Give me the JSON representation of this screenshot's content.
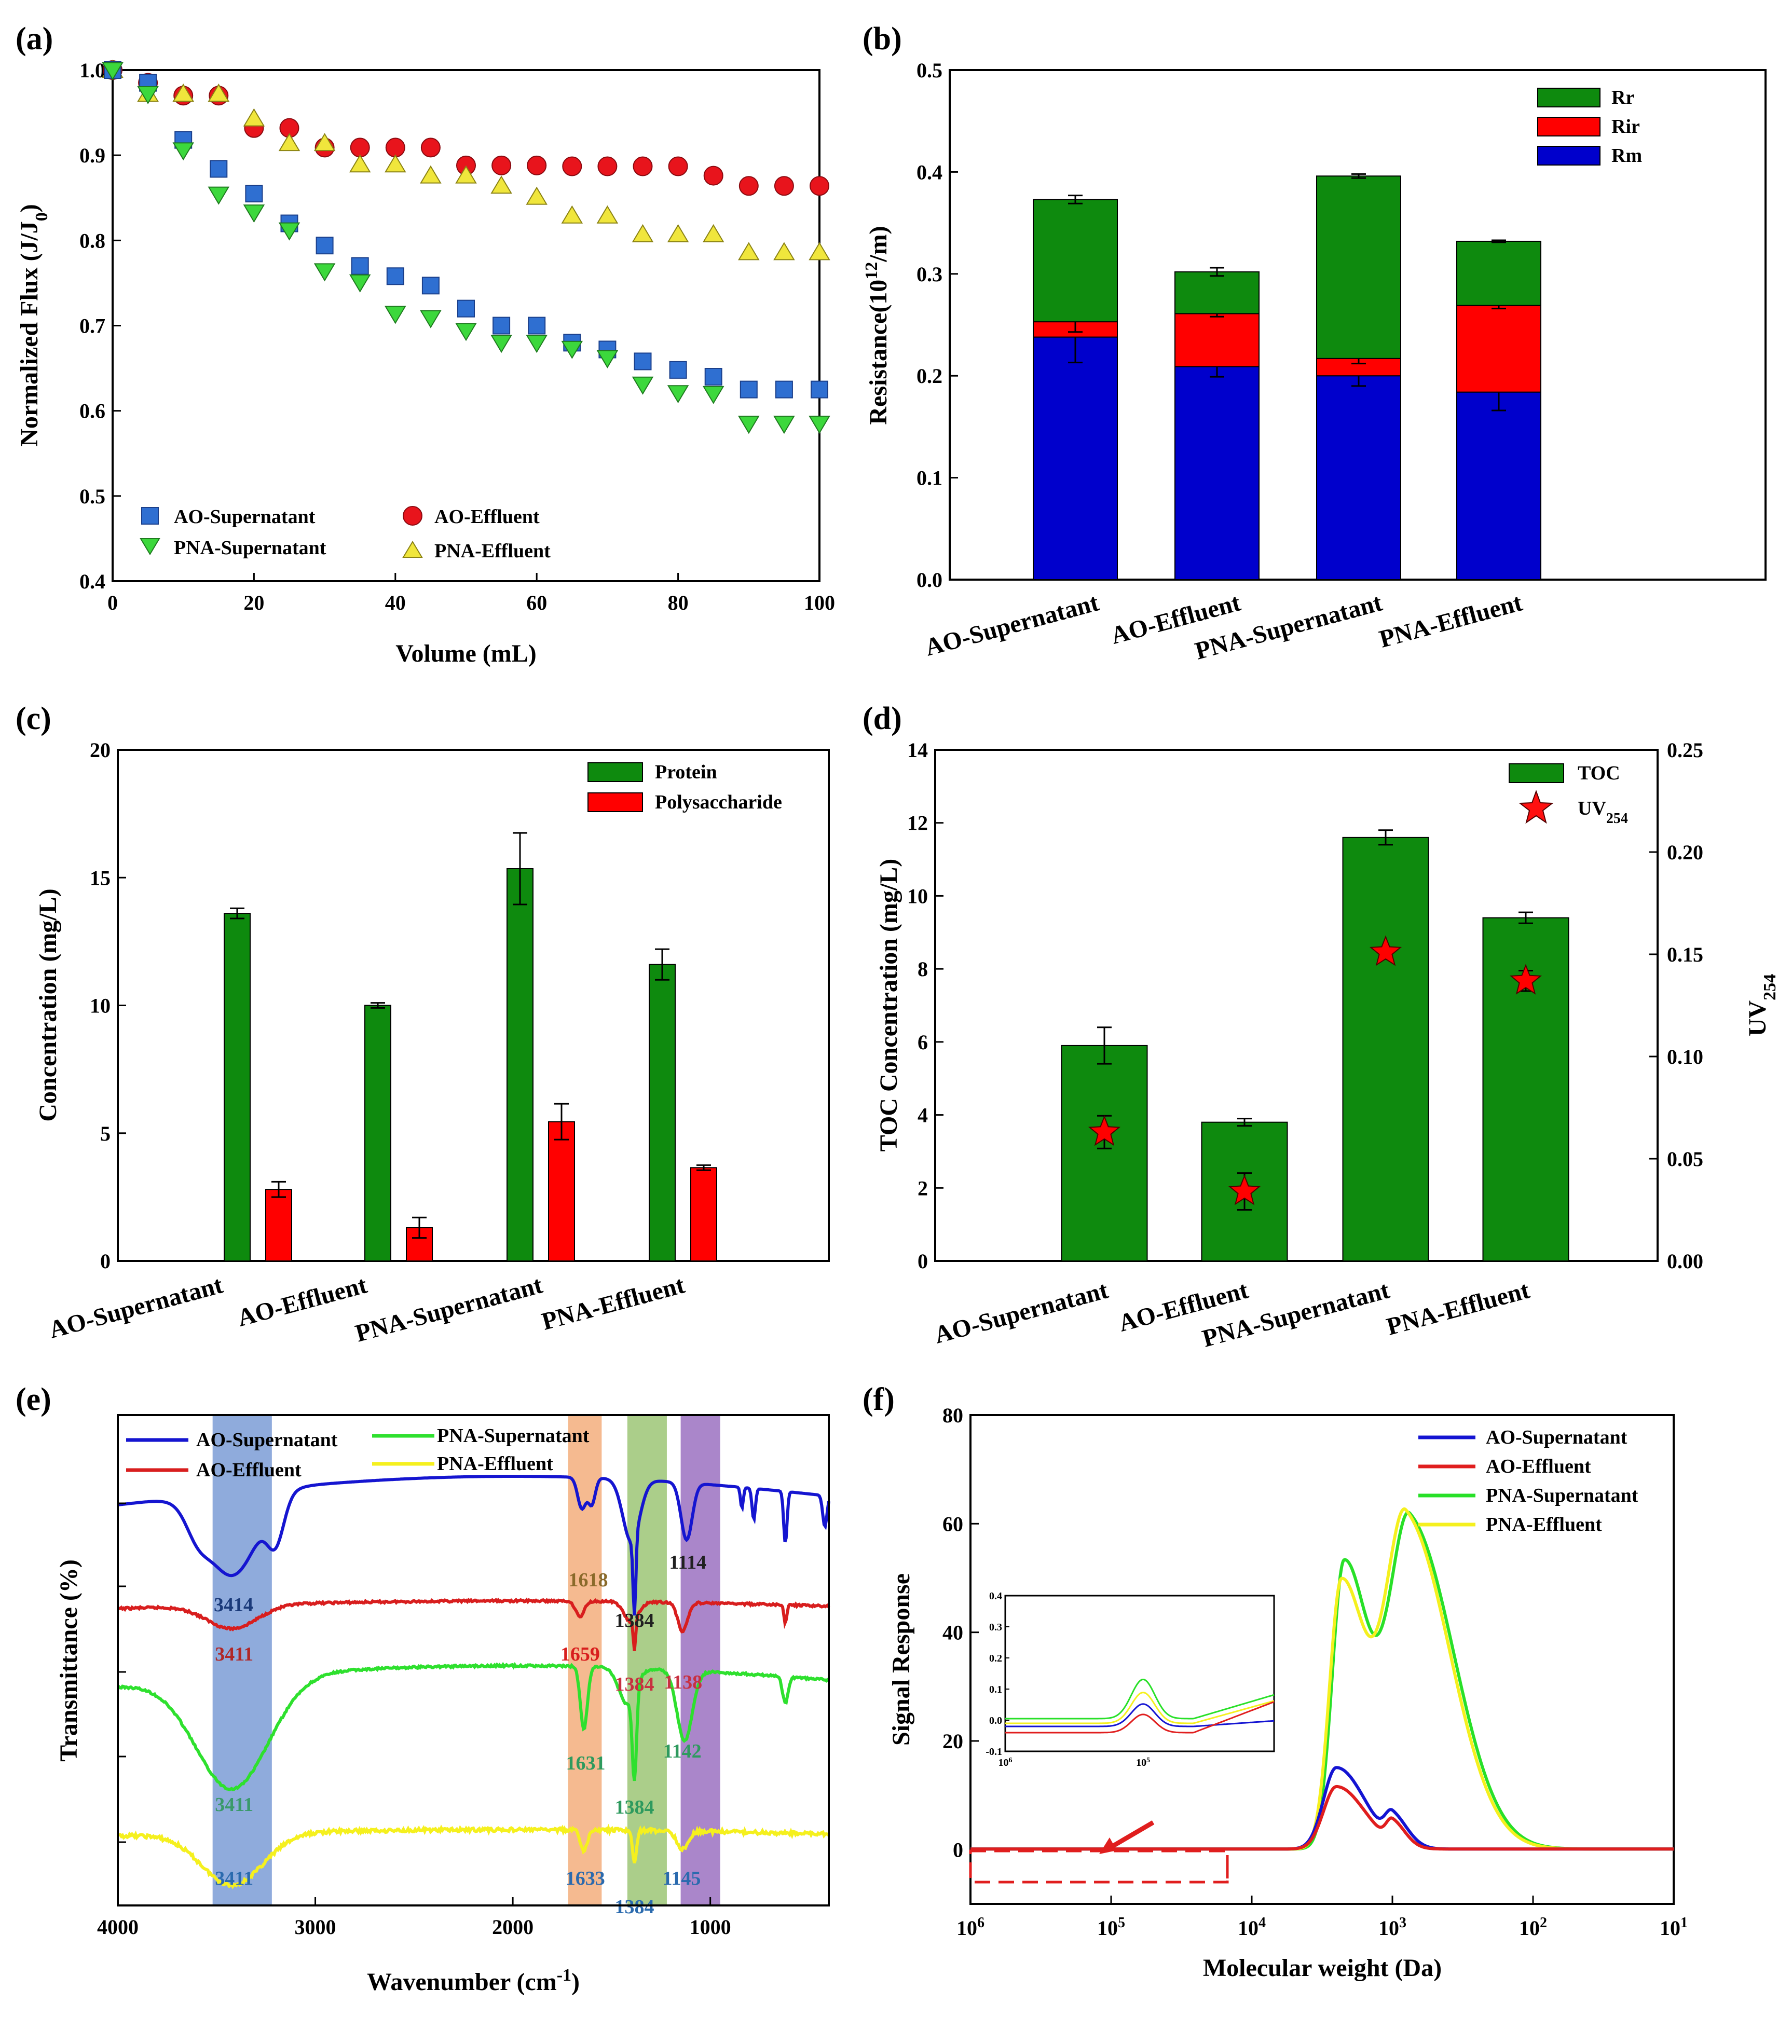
{
  "figure": {
    "panels": [
      "(a)",
      "(b)",
      "(c)",
      "(d)",
      "(e)",
      "(f)"
    ]
  },
  "chart_data": [
    {
      "id": "a",
      "type": "scatter",
      "panel_label": "(a)",
      "xlabel": "Volume (mL)",
      "ylabel_main": "Normalized Flux (J/J",
      "ylabel_sub": "0",
      "ylabel_end": ")",
      "xlim": [
        0,
        100
      ],
      "ylim": [
        0.4,
        1.0
      ],
      "xticks": [
        0,
        20,
        40,
        60,
        80,
        100
      ],
      "yticks": [
        0.4,
        0.5,
        0.6,
        0.7,
        0.8,
        0.9,
        1.0
      ],
      "ytick_labels": [
        "0.4",
        "0.5",
        "0.6",
        "0.7",
        "0.8",
        "0.9",
        "1.0"
      ],
      "x": [
        0,
        5,
        10,
        15,
        20,
        25,
        30,
        35,
        40,
        45,
        50,
        55,
        60,
        65,
        70,
        75,
        80,
        85,
        90,
        95,
        100
      ],
      "series": [
        {
          "name": "AO-Supernatant",
          "marker": "square",
          "color": "#2F6FD1",
          "values": [
            1.0,
            0.985,
            0.918,
            0.884,
            0.855,
            0.82,
            0.794,
            0.77,
            0.758,
            0.747,
            0.72,
            0.7,
            0.7,
            0.68,
            0.672,
            0.658,
            0.648,
            0.64,
            0.625,
            0.625,
            0.625
          ]
        },
        {
          "name": "PNA-Supernatant",
          "marker": "triangle-down",
          "color": "#3CD83C",
          "values": [
            1.0,
            0.972,
            0.906,
            0.854,
            0.833,
            0.812,
            0.764,
            0.751,
            0.714,
            0.709,
            0.694,
            0.68,
            0.68,
            0.673,
            0.662,
            0.631,
            0.621,
            0.62,
            0.585,
            0.585,
            0.585
          ]
        },
        {
          "name": "AO-Effluent",
          "marker": "circle",
          "color": "#E8141C",
          "values": [
            1.0,
            0.985,
            0.97,
            0.97,
            0.932,
            0.932,
            0.909,
            0.909,
            0.909,
            0.909,
            0.888,
            0.888,
            0.888,
            0.887,
            0.887,
            0.887,
            0.887,
            0.876,
            0.864,
            0.864,
            0.864
          ]
        },
        {
          "name": "PNA-Effluent",
          "marker": "triangle-up",
          "color": "#F0E63C",
          "values": [
            1.0,
            0.972,
            0.972,
            0.972,
            0.943,
            0.914,
            0.914,
            0.889,
            0.889,
            0.876,
            0.876,
            0.864,
            0.851,
            0.829,
            0.829,
            0.807,
            0.807,
            0.807,
            0.786,
            0.786,
            0.786
          ]
        }
      ],
      "legend": [
        "AO-Supernatant",
        "AO-Effluent",
        "PNA-Supernatant",
        "PNA-Effluent"
      ]
    },
    {
      "id": "b",
      "type": "bar",
      "stacked": true,
      "panel_label": "(b)",
      "ylabel_main": "Resistance(10",
      "ylabel_sup": "12",
      "ylabel_end": "/m)",
      "ylim": [
        0,
        0.5
      ],
      "yticks": [
        0.0,
        0.1,
        0.2,
        0.3,
        0.4,
        0.5
      ],
      "ytick_labels": [
        "0.0",
        "0.1",
        "0.2",
        "0.3",
        "0.4",
        "0.5"
      ],
      "categories": [
        "AO-Supernatant",
        "AO-Effluent",
        "PNA-Supernatant",
        "PNA-Effluent"
      ],
      "series": [
        {
          "name": "Rm",
          "color": "#0000CC",
          "values": [
            0.238,
            0.209,
            0.2,
            0.184
          ],
          "errors": [
            0.025,
            0.01,
            0.01,
            0.018
          ]
        },
        {
          "name": "Rir",
          "color": "#FF0000",
          "values": [
            0.015,
            0.052,
            0.017,
            0.085
          ],
          "errors": [
            0.01,
            0.003,
            0.005,
            0.003
          ]
        },
        {
          "name": "Rr",
          "color": "#0E8A0E",
          "values": [
            0.12,
            0.041,
            0.179,
            0.063
          ],
          "errors": [
            0.004,
            0.004,
            0.002,
            0.001
          ]
        }
      ],
      "legend": [
        "Rr",
        "Rir",
        "Rm"
      ]
    },
    {
      "id": "c",
      "type": "bar",
      "panel_label": "(c)",
      "ylabel": "Concentration (mg/L)",
      "ylim": [
        0,
        20
      ],
      "yticks": [
        0,
        5,
        10,
        15,
        20
      ],
      "ytick_labels": [
        "0",
        "5",
        "10",
        "15",
        "20"
      ],
      "categories": [
        "AO-Supernatant",
        "AO-Effluent",
        "PNA-Supernatant",
        "PNA-Effluent"
      ],
      "series": [
        {
          "name": "Protein",
          "color": "#0E8A0E",
          "values": [
            13.6,
            10.0,
            15.35,
            11.6
          ],
          "errors": [
            0.2,
            0.1,
            1.4,
            0.6
          ]
        },
        {
          "name": "Polysaccharide",
          "color": "#FF0000",
          "values": [
            2.8,
            1.3,
            5.45,
            3.65
          ],
          "errors": [
            0.3,
            0.4,
            0.7,
            0.1
          ]
        }
      ],
      "legend": [
        "Protein",
        "Polysaccharide"
      ]
    },
    {
      "id": "d",
      "type": "bar",
      "panel_label": "(d)",
      "ylabel": "TOC Concentration (mg/L)",
      "ylabel_right_main": "UV",
      "ylabel_right_sub": "254",
      "ylim": [
        0,
        14
      ],
      "ylim_right": [
        0,
        0.25
      ],
      "yticks": [
        0,
        2,
        4,
        6,
        8,
        10,
        12,
        14
      ],
      "ytick_labels": [
        "0",
        "2",
        "4",
        "6",
        "8",
        "10",
        "12",
        "14"
      ],
      "yticks_right": [
        0.0,
        0.05,
        0.1,
        0.15,
        0.2,
        0.25
      ],
      "ytick_labels_right": [
        "0.00",
        "0.05",
        "0.10",
        "0.15",
        "0.20",
        "0.25"
      ],
      "categories": [
        "AO-Supernatant",
        "AO-Effluent",
        "PNA-Supernatant",
        "PNA-Effluent"
      ],
      "series": [
        {
          "name": "TOC",
          "color": "#0E8A0E",
          "values": [
            5.9,
            3.8,
            11.6,
            9.4
          ],
          "errors": [
            0.5,
            0.1,
            0.2,
            0.15
          ]
        },
        {
          "name": "UV254",
          "color": "#FF0000",
          "axis": "right",
          "values": [
            0.063,
            0.034,
            0.151,
            0.137
          ],
          "errors": [
            0.008,
            0.009,
            0.0,
            0.005
          ]
        }
      ],
      "legend_toc": "TOC",
      "legend_uv_main": "UV",
      "legend_uv_sub": "254"
    },
    {
      "id": "e",
      "type": "line",
      "panel_label": "(e)",
      "xlabel_main": "Wavenumber (cm",
      "xlabel_sup": "-1",
      "xlabel_end": ")",
      "ylabel": "Transmittance (%)",
      "xlim": [
        4000,
        400
      ],
      "xticks": [
        4000,
        3000,
        2000,
        1000
      ],
      "xtick_labels": [
        "4000",
        "3000",
        "2000",
        "1000"
      ],
      "bands": [
        {
          "from": 3520,
          "to": 3220,
          "color": "#6A8FD0"
        },
        {
          "from": 1720,
          "to": 1550,
          "color": "#F2A36B"
        },
        {
          "from": 1420,
          "to": 1220,
          "color": "#8FBE63"
        },
        {
          "from": 1150,
          "to": 950,
          "color": "#8E5DB8"
        }
      ],
      "series": [
        {
          "name": "AO-Supernatant",
          "color": "#1515D0",
          "peaks": [
            "3414",
            "1618",
            "1384",
            "1114"
          ],
          "peak_colors": [
            "#1A3A7A",
            "#8A6A2A",
            "#202020",
            "#202020"
          ]
        },
        {
          "name": "AO-Effluent",
          "color": "#D81E1E",
          "peaks": [
            "3411",
            "1659",
            "1384",
            "1138"
          ],
          "peak_colors": [
            "#B02828",
            "#D81E1E",
            "#C83040",
            "#C83040"
          ]
        },
        {
          "name": "PNA-Supernatant",
          "color": "#2EE02E",
          "peaks": [
            "3411",
            "1631",
            "1384",
            "1142"
          ],
          "peak_colors": [
            "#3A9A6A",
            "#2E9A5E",
            "#2E9A5E",
            "#2E9A5E"
          ]
        },
        {
          "name": "PNA-Effluent",
          "color": "#F5F01E",
          "peaks": [
            "3411",
            "1633",
            "1384",
            "1145"
          ],
          "peak_colors": [
            "#2A6AAE",
            "#2A6AAE",
            "#2A6AAE",
            "#2A6AAE"
          ]
        }
      ],
      "legend": [
        "AO-Supernatant",
        "AO-Effluent",
        "PNA-Supernatant",
        "PNA-Effluent"
      ]
    },
    {
      "id": "f",
      "type": "line",
      "panel_label": "(f)",
      "xlabel": "Molecular weight (Da)",
      "ylabel": "Signal Response",
      "xscale": "log-reversed",
      "xlim": [
        1000000,
        10
      ],
      "ylim": [
        -10,
        80
      ],
      "yticks": [
        0,
        20,
        40,
        60,
        80
      ],
      "ytick_labels": [
        "0",
        "20",
        "40",
        "60",
        "80"
      ],
      "xtick_exponents": [
        "6",
        "5",
        "4",
        "3",
        "2",
        "1"
      ],
      "xtick_base": "10",
      "series": [
        {
          "name": "AO-Supernatant",
          "color": "#1414D2",
          "peaks": [
            [
              2500,
              15
            ],
            [
              1000,
              5
            ]
          ]
        },
        {
          "name": "AO-Effluent",
          "color": "#E01E1E",
          "peaks": [
            [
              2500,
              11.5
            ],
            [
              1000,
              4
            ]
          ]
        },
        {
          "name": "PNA-Supernatant",
          "color": "#28E028",
          "peaks": [
            [
              2200,
              53
            ],
            [
              750,
              59.5
            ]
          ]
        },
        {
          "name": "PNA-Effluent",
          "color": "#F5F01E",
          "peaks": [
            [
              2300,
              49.5
            ],
            [
              800,
              60
            ]
          ]
        }
      ],
      "legend": [
        "AO-Supernatant",
        "AO-Effluent",
        "PNA-Supernatant",
        "PNA-Effluent"
      ],
      "inset": {
        "ylim": [
          -0.1,
          0.4
        ],
        "yticks": [
          -0.1,
          0.0,
          0.1,
          0.2,
          0.3,
          0.4
        ],
        "ytick_labels": [
          "-0.1",
          "0.0",
          "0.1",
          "0.2",
          "0.3",
          "0.4"
        ],
        "xtick_exponents": [
          "6",
          "5"
        ],
        "xtick_base": "10",
        "peak_values": [
          0.06,
          0.025,
          0.145,
          0.1
        ]
      }
    }
  ]
}
